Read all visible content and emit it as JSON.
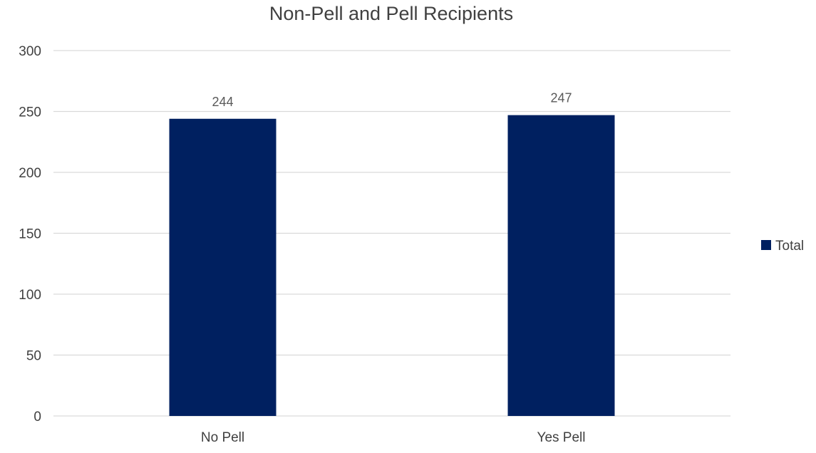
{
  "chart_data": {
    "type": "bar",
    "title": "Non-Pell and Pell Recipients",
    "xlabel": "",
    "ylabel": "",
    "categories": [
      "No Pell",
      "Yes Pell"
    ],
    "series": [
      {
        "name": "Total",
        "values": [
          244,
          247
        ],
        "color": "#002060"
      }
    ],
    "ylim": [
      0,
      300
    ],
    "yticks": [
      0,
      50,
      100,
      150,
      200,
      250,
      300
    ],
    "grid": true,
    "data_labels": true,
    "legend": "right"
  }
}
